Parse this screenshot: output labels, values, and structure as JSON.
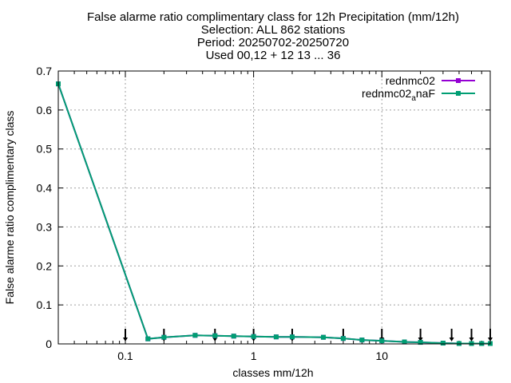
{
  "chart_data": {
    "type": "line",
    "title_lines": [
      "False alarme ratio complimentary class  for 12h Precipitation (mm/12h)",
      "Selection: ALL    862 stations",
      "Period: 20250702-20250720",
      "Used 00,12 + 12 13 ... 36"
    ],
    "xlabel": "classes mm/12h",
    "ylabel": "False alarme ratio complimentary class",
    "x_scale": "log",
    "xlim": [
      0.03,
      70
    ],
    "ylim": [
      0,
      0.7
    ],
    "x_ticks": [
      {
        "value": 0.1,
        "label": "0.1"
      },
      {
        "value": 1,
        "label": "1"
      },
      {
        "value": 10,
        "label": "10"
      }
    ],
    "y_ticks": [
      {
        "value": 0,
        "label": "0"
      },
      {
        "value": 0.1,
        "label": "0.1"
      },
      {
        "value": 0.2,
        "label": "0.2"
      },
      {
        "value": 0.3,
        "label": "0.3"
      },
      {
        "value": 0.4,
        "label": "0.4"
      },
      {
        "value": 0.5,
        "label": "0.5"
      },
      {
        "value": 0.6,
        "label": "0.6"
      },
      {
        "value": 0.7,
        "label": "0.7"
      }
    ],
    "grid": true,
    "legend_position": "top-right",
    "x": [
      0.03,
      0.15,
      0.2,
      0.35,
      0.5,
      0.7,
      1,
      1.5,
      2,
      3.5,
      5,
      7,
      10,
      15,
      20,
      30,
      40,
      50,
      60,
      70
    ],
    "series": [
      {
        "name": "rednmc02",
        "color": "#9400d3",
        "values": [
          0.667,
          0.013,
          0.017,
          0.022,
          0.021,
          0.02,
          0.019,
          0.018,
          0.018,
          0.017,
          0.014,
          0.01,
          0.008,
          0.005,
          0.004,
          0.002,
          0.001,
          0.001,
          0.001,
          0.001
        ]
      },
      {
        "name_main": "rednmc02",
        "name_sub": "a",
        "name_tail": "naF",
        "color": "#009e73",
        "values": [
          0.667,
          0.013,
          0.017,
          0.022,
          0.021,
          0.02,
          0.019,
          0.018,
          0.018,
          0.017,
          0.014,
          0.01,
          0.008,
          0.005,
          0.004,
          0.002,
          0.001,
          0.001,
          0.001,
          0.001
        ]
      }
    ],
    "markers": [
      0.1,
      0.2,
      0.5,
      1,
      2,
      5,
      10,
      20,
      35,
      50,
      70
    ]
  }
}
